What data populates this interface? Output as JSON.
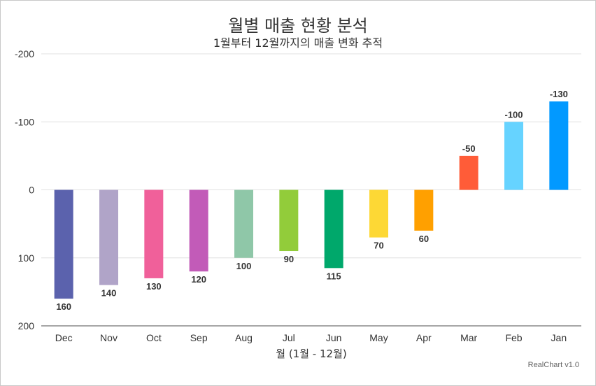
{
  "title": "월별 매출 현황 분석",
  "subtitle": "1월부터 12월까지의 매출 변화 추적",
  "credit": "RealChart v1.0",
  "chart_data": {
    "type": "bar",
    "title": "월별 매출 현황 분석",
    "subtitle": "1월부터 12월까지의 매출 변화 추적",
    "xlabel": "월 (1월 - 12월)",
    "ylabel": "",
    "y_axis_reversed": true,
    "ylim": [
      -200,
      200
    ],
    "yticks": [
      -200,
      -100,
      0,
      100,
      200
    ],
    "grid": true,
    "legend": "none",
    "data_labels": true,
    "categories": [
      "Dec",
      "Nov",
      "Oct",
      "Sep",
      "Aug",
      "Jul",
      "Jun",
      "May",
      "Apr",
      "Mar",
      "Feb",
      "Jan"
    ],
    "values": [
      160,
      140,
      130,
      120,
      100,
      90,
      115,
      70,
      60,
      -50,
      -100,
      -130
    ],
    "colors": [
      "#5b62ad",
      "#b0a4c8",
      "#f0609a",
      "#c25bb8",
      "#8fc7a8",
      "#92cc3a",
      "#00a86b",
      "#fdd835",
      "#ffa000",
      "#ff5c38",
      "#66d3ff",
      "#0299ff"
    ]
  }
}
